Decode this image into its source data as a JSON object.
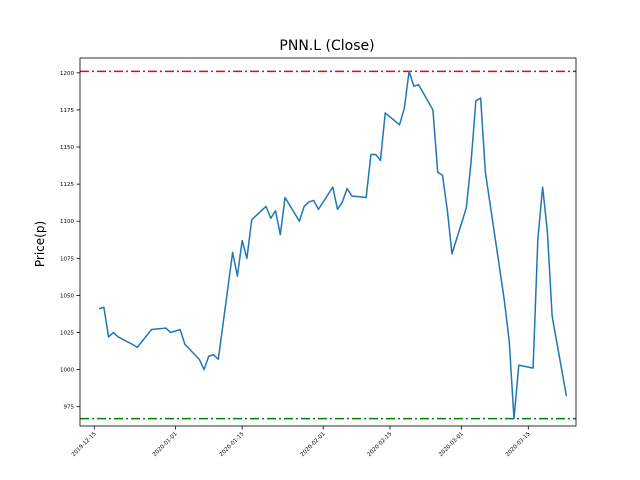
{
  "chart_data": {
    "type": "line",
    "title": "PNN.L (Close)",
    "xlabel": "",
    "ylabel": "Price(p)",
    "xlim": [
      "2019-12-12",
      "2020-03-25"
    ],
    "ylim": [
      962,
      1210
    ],
    "xticks": [
      "2019-12-15",
      "2020-01-01",
      "2020-01-15",
      "2020-02-01",
      "2020-02-15",
      "2020-03-01",
      "2020-03-15"
    ],
    "yticks": [
      975,
      1000,
      1025,
      1050,
      1075,
      1100,
      1125,
      1150,
      1175,
      1200
    ],
    "grid": false,
    "series": [
      {
        "color": "#1f77b4",
        "points": [
          [
            "2019-12-16",
            1041
          ],
          [
            "2019-12-17",
            1042
          ],
          [
            "2019-12-18",
            1022
          ],
          [
            "2019-12-19",
            1025
          ],
          [
            "2019-12-20",
            1022
          ],
          [
            "2019-12-23",
            1017
          ],
          [
            "2019-12-24",
            1015
          ],
          [
            "2019-12-27",
            1027
          ],
          [
            "2019-12-30",
            1028
          ],
          [
            "2019-12-31",
            1025
          ],
          [
            "2020-01-02",
            1027
          ],
          [
            "2020-01-03",
            1017
          ],
          [
            "2020-01-06",
            1007
          ],
          [
            "2020-01-07",
            1000
          ],
          [
            "2020-01-08",
            1009
          ],
          [
            "2020-01-09",
            1010
          ],
          [
            "2020-01-10",
            1007
          ],
          [
            "2020-01-13",
            1079
          ],
          [
            "2020-01-14",
            1063
          ],
          [
            "2020-01-15",
            1087
          ],
          [
            "2020-01-16",
            1075
          ],
          [
            "2020-01-17",
            1101
          ],
          [
            "2020-01-20",
            1110
          ],
          [
            "2020-01-21",
            1102
          ],
          [
            "2020-01-22",
            1107
          ],
          [
            "2020-01-23",
            1091
          ],
          [
            "2020-01-24",
            1116
          ],
          [
            "2020-01-27",
            1100
          ],
          [
            "2020-01-28",
            1110
          ],
          [
            "2020-01-29",
            1113
          ],
          [
            "2020-01-30",
            1114
          ],
          [
            "2020-01-31",
            1108
          ],
          [
            "2020-02-03",
            1123
          ],
          [
            "2020-02-04",
            1108
          ],
          [
            "2020-02-05",
            1113
          ],
          [
            "2020-02-06",
            1122
          ],
          [
            "2020-02-07",
            1117
          ],
          [
            "2020-02-10",
            1116
          ],
          [
            "2020-02-11",
            1145
          ],
          [
            "2020-02-12",
            1145
          ],
          [
            "2020-02-13",
            1141
          ],
          [
            "2020-02-14",
            1173
          ],
          [
            "2020-02-17",
            1165
          ],
          [
            "2020-02-18",
            1176
          ],
          [
            "2020-02-19",
            1201
          ],
          [
            "2020-02-20",
            1191
          ],
          [
            "2020-02-21",
            1192
          ],
          [
            "2020-02-24",
            1175
          ],
          [
            "2020-02-25",
            1133
          ],
          [
            "2020-02-26",
            1131
          ],
          [
            "2020-02-27",
            1108
          ],
          [
            "2020-02-28",
            1078
          ],
          [
            "2020-03-02",
            1109
          ],
          [
            "2020-03-03",
            1140
          ],
          [
            "2020-03-04",
            1181
          ],
          [
            "2020-03-05",
            1183
          ],
          [
            "2020-03-06",
            1133
          ],
          [
            "2020-03-09",
            1068
          ],
          [
            "2020-03-10",
            1046
          ],
          [
            "2020-03-11",
            1019
          ],
          [
            "2020-03-12",
            967
          ],
          [
            "2020-03-13",
            1003
          ],
          [
            "2020-03-16",
            1001
          ],
          [
            "2020-03-17",
            1088
          ],
          [
            "2020-03-18",
            1123
          ],
          [
            "2020-03-19",
            1093
          ],
          [
            "2020-03-20",
            1036
          ],
          [
            "2020-03-23",
            982
          ]
        ]
      }
    ],
    "reference_lines": [
      {
        "value": 1201,
        "color": "#ff0000",
        "style": "dashdot"
      },
      {
        "value": 967,
        "color": "#008000",
        "style": "dashdot"
      }
    ]
  }
}
